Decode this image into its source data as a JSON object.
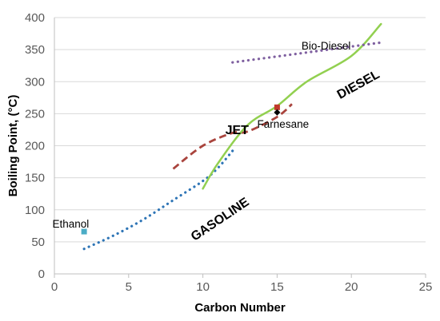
{
  "chart_data": {
    "type": "line",
    "title": "",
    "xlabel": "Carbon Number",
    "ylabel": "Boiling Point, (°C)",
    "xlim": [
      0,
      25
    ],
    "ylim": [
      0,
      400
    ],
    "x_ticks": [
      0,
      5,
      10,
      15,
      20,
      25
    ],
    "y_ticks": [
      0,
      50,
      100,
      150,
      200,
      250,
      300,
      350,
      400
    ],
    "x_tick_labels": [
      "0",
      "5",
      "10",
      "15",
      "20",
      "25"
    ],
    "y_tick_labels": [
      "0",
      "50",
      "100",
      "150",
      "200",
      "250",
      "300",
      "350",
      "400"
    ],
    "grid": "horizontal",
    "legend": "none",
    "series": [
      {
        "color": "#2e75b6",
        "line_style": "dotted",
        "points": [
          [
            2,
            39
          ],
          [
            4,
            60
          ],
          [
            6,
            85
          ],
          [
            8,
            115
          ],
          [
            10,
            145
          ],
          [
            11,
            165
          ],
          [
            12,
            192
          ]
        ]
      },
      {
        "color": "#a9443d",
        "line_style": "dashed",
        "points": [
          [
            8,
            164
          ],
          [
            10,
            200
          ],
          [
            12,
            220
          ],
          [
            13,
            222
          ],
          [
            15,
            245
          ],
          [
            16,
            265
          ]
        ]
      },
      {
        "color": "#92d050",
        "line_style": "solid",
        "points": [
          [
            10,
            133
          ],
          [
            11,
            172
          ],
          [
            13,
            232
          ],
          [
            15,
            262
          ],
          [
            17,
            300
          ],
          [
            20,
            340
          ],
          [
            22,
            390
          ]
        ]
      },
      {
        "color": "#7f60a0",
        "line_style": "dotted",
        "points": [
          [
            12,
            330
          ],
          [
            22,
            361
          ]
        ]
      }
    ],
    "markers": [
      {
        "label": "Ethanol",
        "x": 2,
        "y": 66,
        "color": "#4bacc6",
        "shape": "square"
      },
      {
        "label": "",
        "x": 15,
        "y": 260,
        "color": "#c0392b",
        "shape": "square"
      },
      {
        "label": "Farnesane",
        "x": 15,
        "y": 252,
        "color": "#000000",
        "shape": "diamond"
      }
    ],
    "annotations": [
      {
        "text": "Bio-Diesel",
        "x": 18.3,
        "y": 350,
        "style": "normal"
      },
      {
        "text": "JET",
        "x": 12.3,
        "y": 218,
        "style": "bold"
      },
      {
        "text": "GASOLINE",
        "x": 11.3,
        "y": 80,
        "style": "bold-rotated"
      },
      {
        "text": "DIESEL",
        "x": 20.6,
        "y": 290,
        "style": "bold-rotated"
      },
      {
        "text": "Farnesane",
        "x": 15.4,
        "y": 228,
        "style": "normal"
      },
      {
        "text": "Ethanol",
        "x": 1.1,
        "y": 72,
        "style": "normal"
      }
    ]
  }
}
